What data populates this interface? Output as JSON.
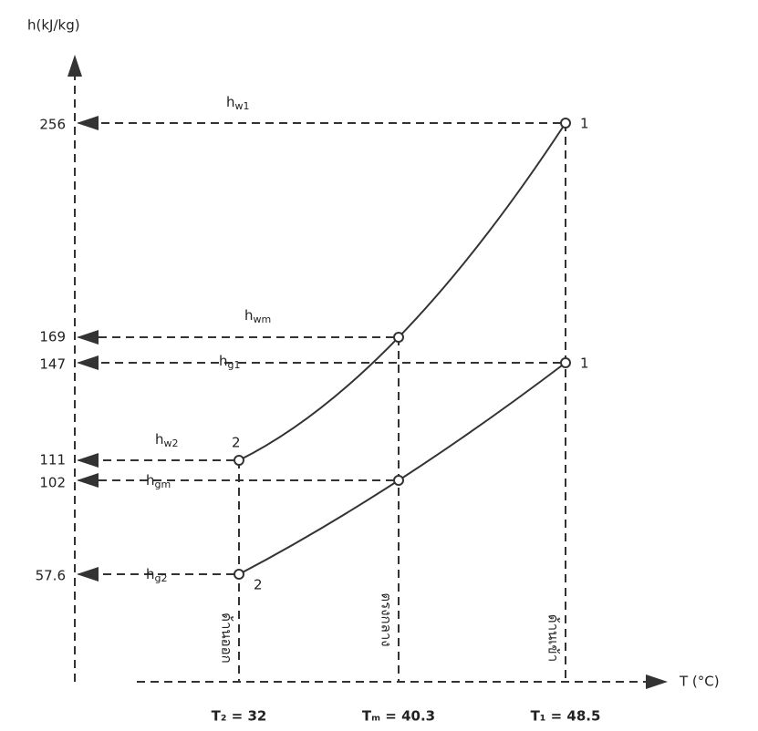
{
  "axes": {
    "y_label": "h(kJ/kg)",
    "x_label": "T (°C)"
  },
  "y_ticks": [
    "256",
    "169",
    "147",
    "111",
    "102",
    "57.6"
  ],
  "x_ticks": [
    "T₂ = 32",
    "Tₘ = 40.3",
    "T₁ = 48.5"
  ],
  "curve_labels": [
    {
      "main": "h",
      "sub": "w1"
    },
    {
      "main": "h",
      "sub": "wm"
    },
    {
      "main": "h",
      "sub": "g1"
    },
    {
      "main": "h",
      "sub": "w2"
    },
    {
      "main": "h",
      "sub": "gm"
    },
    {
      "main": "h",
      "sub": "g2"
    }
  ],
  "point_labels": [
    "1",
    "1",
    "2",
    "2"
  ],
  "position_labels": [
    "ด้านออก",
    "ตรงกลาง",
    "ด้านเข้า"
  ]
}
